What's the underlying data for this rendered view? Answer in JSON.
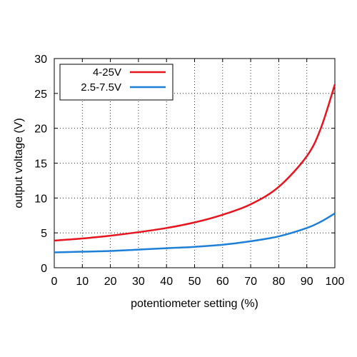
{
  "chart_data": {
    "type": "line",
    "xlabel": "potentiometer setting (%)",
    "ylabel": "output voltage (V)",
    "xlim": [
      0,
      100
    ],
    "ylim": [
      0,
      30
    ],
    "x_ticks": [
      0,
      10,
      20,
      30,
      40,
      50,
      60,
      70,
      80,
      90,
      100
    ],
    "y_ticks": [
      0,
      5,
      10,
      15,
      20,
      25,
      30
    ],
    "x_tick_labels": [
      "0",
      "10",
      "20",
      "30",
      "40",
      "50",
      "60",
      "70",
      "80",
      "90",
      "100"
    ],
    "y_tick_labels": [
      "0",
      "5",
      "10",
      "15",
      "20",
      "25",
      "30"
    ],
    "grid": "dotted",
    "legend_position": "top-left",
    "x": [
      0,
      10,
      20,
      30,
      40,
      50,
      60,
      70,
      80,
      90,
      95,
      100
    ],
    "series": [
      {
        "name": "4-25V",
        "color": "#e8141e",
        "values": [
          3.9,
          4.2,
          4.6,
          5.1,
          5.7,
          6.5,
          7.6,
          9.1,
          11.6,
          16.0,
          20.0,
          26.3
        ]
      },
      {
        "name": "2.5-7.5V",
        "color": "#1e7fd8",
        "values": [
          2.2,
          2.3,
          2.4,
          2.6,
          2.8,
          3.0,
          3.3,
          3.8,
          4.5,
          5.7,
          6.6,
          7.8
        ]
      }
    ]
  }
}
